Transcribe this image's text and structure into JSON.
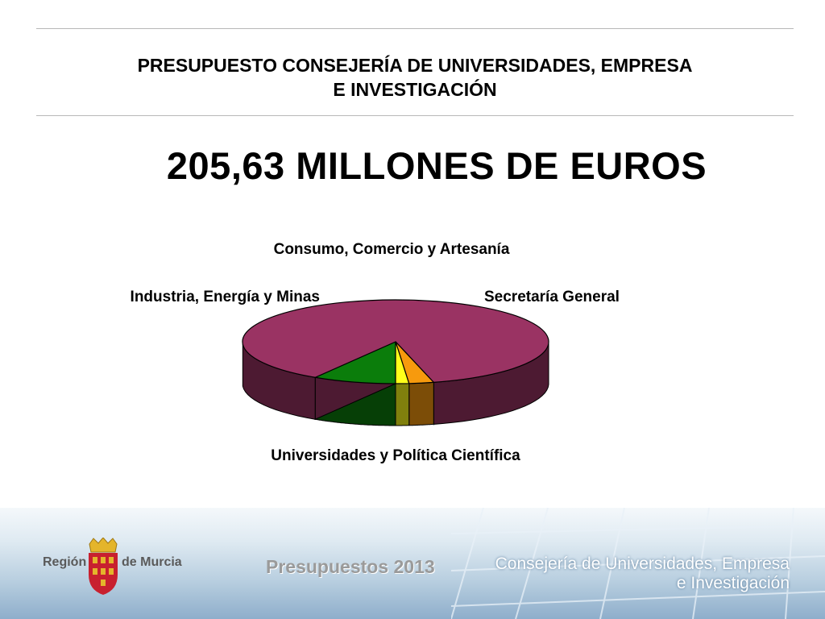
{
  "header": {
    "title_line1": "PRESUPUESTO CONSEJERÍA DE UNIVERSIDADES, EMPRESA",
    "title_line2": "E INVESTIGACIÓN",
    "headline": "205,63 MILLONES DE EUROS"
  },
  "chart_data": {
    "type": "pie",
    "title": "",
    "slices": [
      {
        "label": "Secretaría General",
        "value": 8.8,
        "color": "#0b7d0b"
      },
      {
        "label": "Universidades y Política Científica",
        "value": 87.2,
        "color": "#9a3363"
      },
      {
        "label": "Industria, Energía y Minas",
        "value": 2.6,
        "color": "#f79a0d"
      },
      {
        "label": "Consumo, Comercio y Artesanía",
        "value": 1.4,
        "color": "#ffff1a"
      }
    ],
    "legend": "none"
  },
  "footer": {
    "region_left": "Región",
    "region_right": "de Murcia",
    "budget_label": "Presupuestos 2013",
    "department_line1": "Consejería de Universidades, Empresa",
    "department_line2": "e Investigación"
  },
  "colors": {
    "crest_red": "#c8202f",
    "crest_gold": "#e4b52b"
  }
}
